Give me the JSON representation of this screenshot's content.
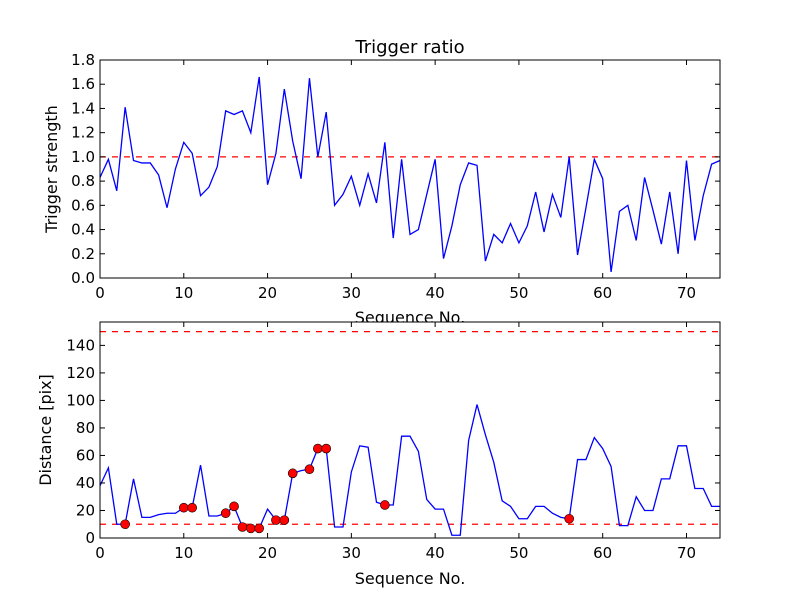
{
  "chart_data": [
    {
      "type": "line",
      "title": "Trigger ratio",
      "xlabel": "Sequence No.",
      "ylabel": "Trigger strength",
      "xlim": [
        0,
        74
      ],
      "ylim": [
        0,
        1.8
      ],
      "xticks": [
        0,
        10,
        20,
        30,
        40,
        50,
        60,
        70
      ],
      "yticks": [
        0.0,
        0.2,
        0.4,
        0.6,
        0.8,
        1.0,
        1.2,
        1.4,
        1.6,
        1.8
      ],
      "ytick_labels": [
        "0.0",
        "0.2",
        "0.4",
        "0.6",
        "0.8",
        "1.0",
        "1.2",
        "1.4",
        "1.6",
        "1.8"
      ],
      "grid": false,
      "series": [
        {
          "name": "trigger strength",
          "color": "#0000ff",
          "values": [
            0.83,
            0.98,
            0.72,
            1.41,
            0.97,
            0.95,
            0.95,
            0.85,
            0.58,
            0.9,
            1.12,
            1.03,
            0.68,
            0.75,
            0.92,
            1.38,
            1.35,
            1.38,
            1.2,
            1.66,
            0.77,
            1.03,
            1.56,
            1.13,
            0.82,
            1.65,
            1.0,
            1.37,
            0.6,
            0.69,
            0.84,
            0.6,
            0.86,
            0.62,
            1.12,
            0.33,
            0.98,
            0.36,
            0.4,
            0.69,
            0.98,
            0.16,
            0.43,
            0.77,
            0.95,
            0.93,
            0.14,
            0.36,
            0.29,
            0.45,
            0.29,
            0.43,
            0.71,
            0.38,
            0.69,
            0.5,
            1.0,
            0.19,
            0.58,
            0.98,
            0.82,
            0.05,
            0.55,
            0.6,
            0.31,
            0.83,
            0.56,
            0.28,
            0.71,
            0.2,
            0.97,
            0.31,
            0.68,
            0.94,
            0.97
          ]
        }
      ],
      "hlines": [
        {
          "y": 1.0,
          "color": "#ff0000",
          "style": "dashed"
        }
      ]
    },
    {
      "type": "line",
      "title": "",
      "xlabel": "Sequence No.",
      "ylabel": "Distance [pix]",
      "xlim": [
        0,
        74
      ],
      "ylim": [
        0,
        157
      ],
      "xticks": [
        0,
        10,
        20,
        30,
        40,
        50,
        60,
        70
      ],
      "yticks": [
        0,
        20,
        40,
        60,
        80,
        100,
        120,
        140
      ],
      "ytick_labels": [
        "0",
        "20",
        "40",
        "60",
        "80",
        "100",
        "120",
        "140"
      ],
      "grid": false,
      "series": [
        {
          "name": "distance",
          "color": "#0000ff",
          "values": [
            38,
            51,
            10,
            10,
            43,
            15,
            15,
            17,
            18,
            18,
            22,
            22,
            53,
            16,
            16,
            18,
            23,
            8,
            7,
            7,
            21,
            13,
            13,
            47,
            49,
            50,
            65,
            65,
            8,
            8,
            48,
            67,
            66,
            26,
            24,
            24,
            74,
            74,
            63,
            28,
            21,
            21,
            2,
            2,
            71,
            97,
            75,
            55,
            27,
            23,
            14,
            14,
            23,
            23,
            18,
            15,
            14,
            57,
            57,
            73,
            65,
            52,
            9,
            9,
            30,
            20,
            20,
            43,
            43,
            67,
            67,
            36,
            36,
            23,
            23
          ]
        }
      ],
      "markers": {
        "color": "#ff0000",
        "indices": [
          3,
          10,
          11,
          15,
          16,
          17,
          18,
          19,
          21,
          22,
          23,
          25,
          26,
          27,
          34,
          56
        ]
      },
      "hlines": [
        {
          "y": 150,
          "color": "#ff0000",
          "style": "dashed"
        },
        {
          "y": 10,
          "color": "#ff0000",
          "style": "dashed"
        }
      ]
    }
  ]
}
